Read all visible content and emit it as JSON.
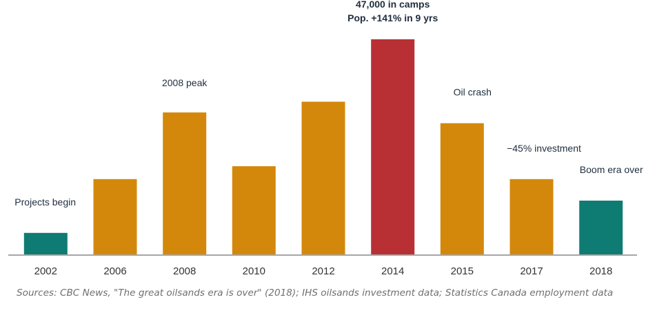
{
  "chart_data": {
    "type": "bar",
    "categories": [
      "2002",
      "2006",
      "2008",
      "2010",
      "2012",
      "2014",
      "2015",
      "2017",
      "2018"
    ],
    "values": [
      10,
      35,
      66,
      41,
      71,
      100,
      61,
      35,
      25
    ],
    "ylim": [
      0,
      100
    ],
    "grid": false,
    "bar_colors": [
      "#0f7c74",
      "#d4880b",
      "#d4880b",
      "#d4880b",
      "#d4880b",
      "#b83034",
      "#d4880b",
      "#d4880b",
      "#0f7c74"
    ],
    "annotations": [
      {
        "category": "2002",
        "lines": [
          "Projects begin"
        ],
        "bold": false
      },
      {
        "category": "2008",
        "lines": [
          "2008 peak"
        ],
        "bold": false
      },
      {
        "category": "2014",
        "lines": [
          "47,000 in camps",
          "Pop. +141% in 9 yrs"
        ],
        "bold": true
      },
      {
        "category": "2015",
        "lines": [
          "Oil crash"
        ],
        "bold": false
      },
      {
        "category": "2017",
        "lines": [
          "−45% investment"
        ],
        "bold": false
      },
      {
        "category": "2018",
        "lines": [
          "Boom era over"
        ],
        "bold": false
      }
    ],
    "source": "Sources: CBC News, \"The great oilsands era is over\" (2018); IHS oilsands investment data; Statistics Canada employment data"
  },
  "colors": {
    "axis": "#a6a6a6",
    "tick_text": "#333333",
    "annotation_text": "#1f2d3d",
    "source_text": "#6f6f6f"
  }
}
